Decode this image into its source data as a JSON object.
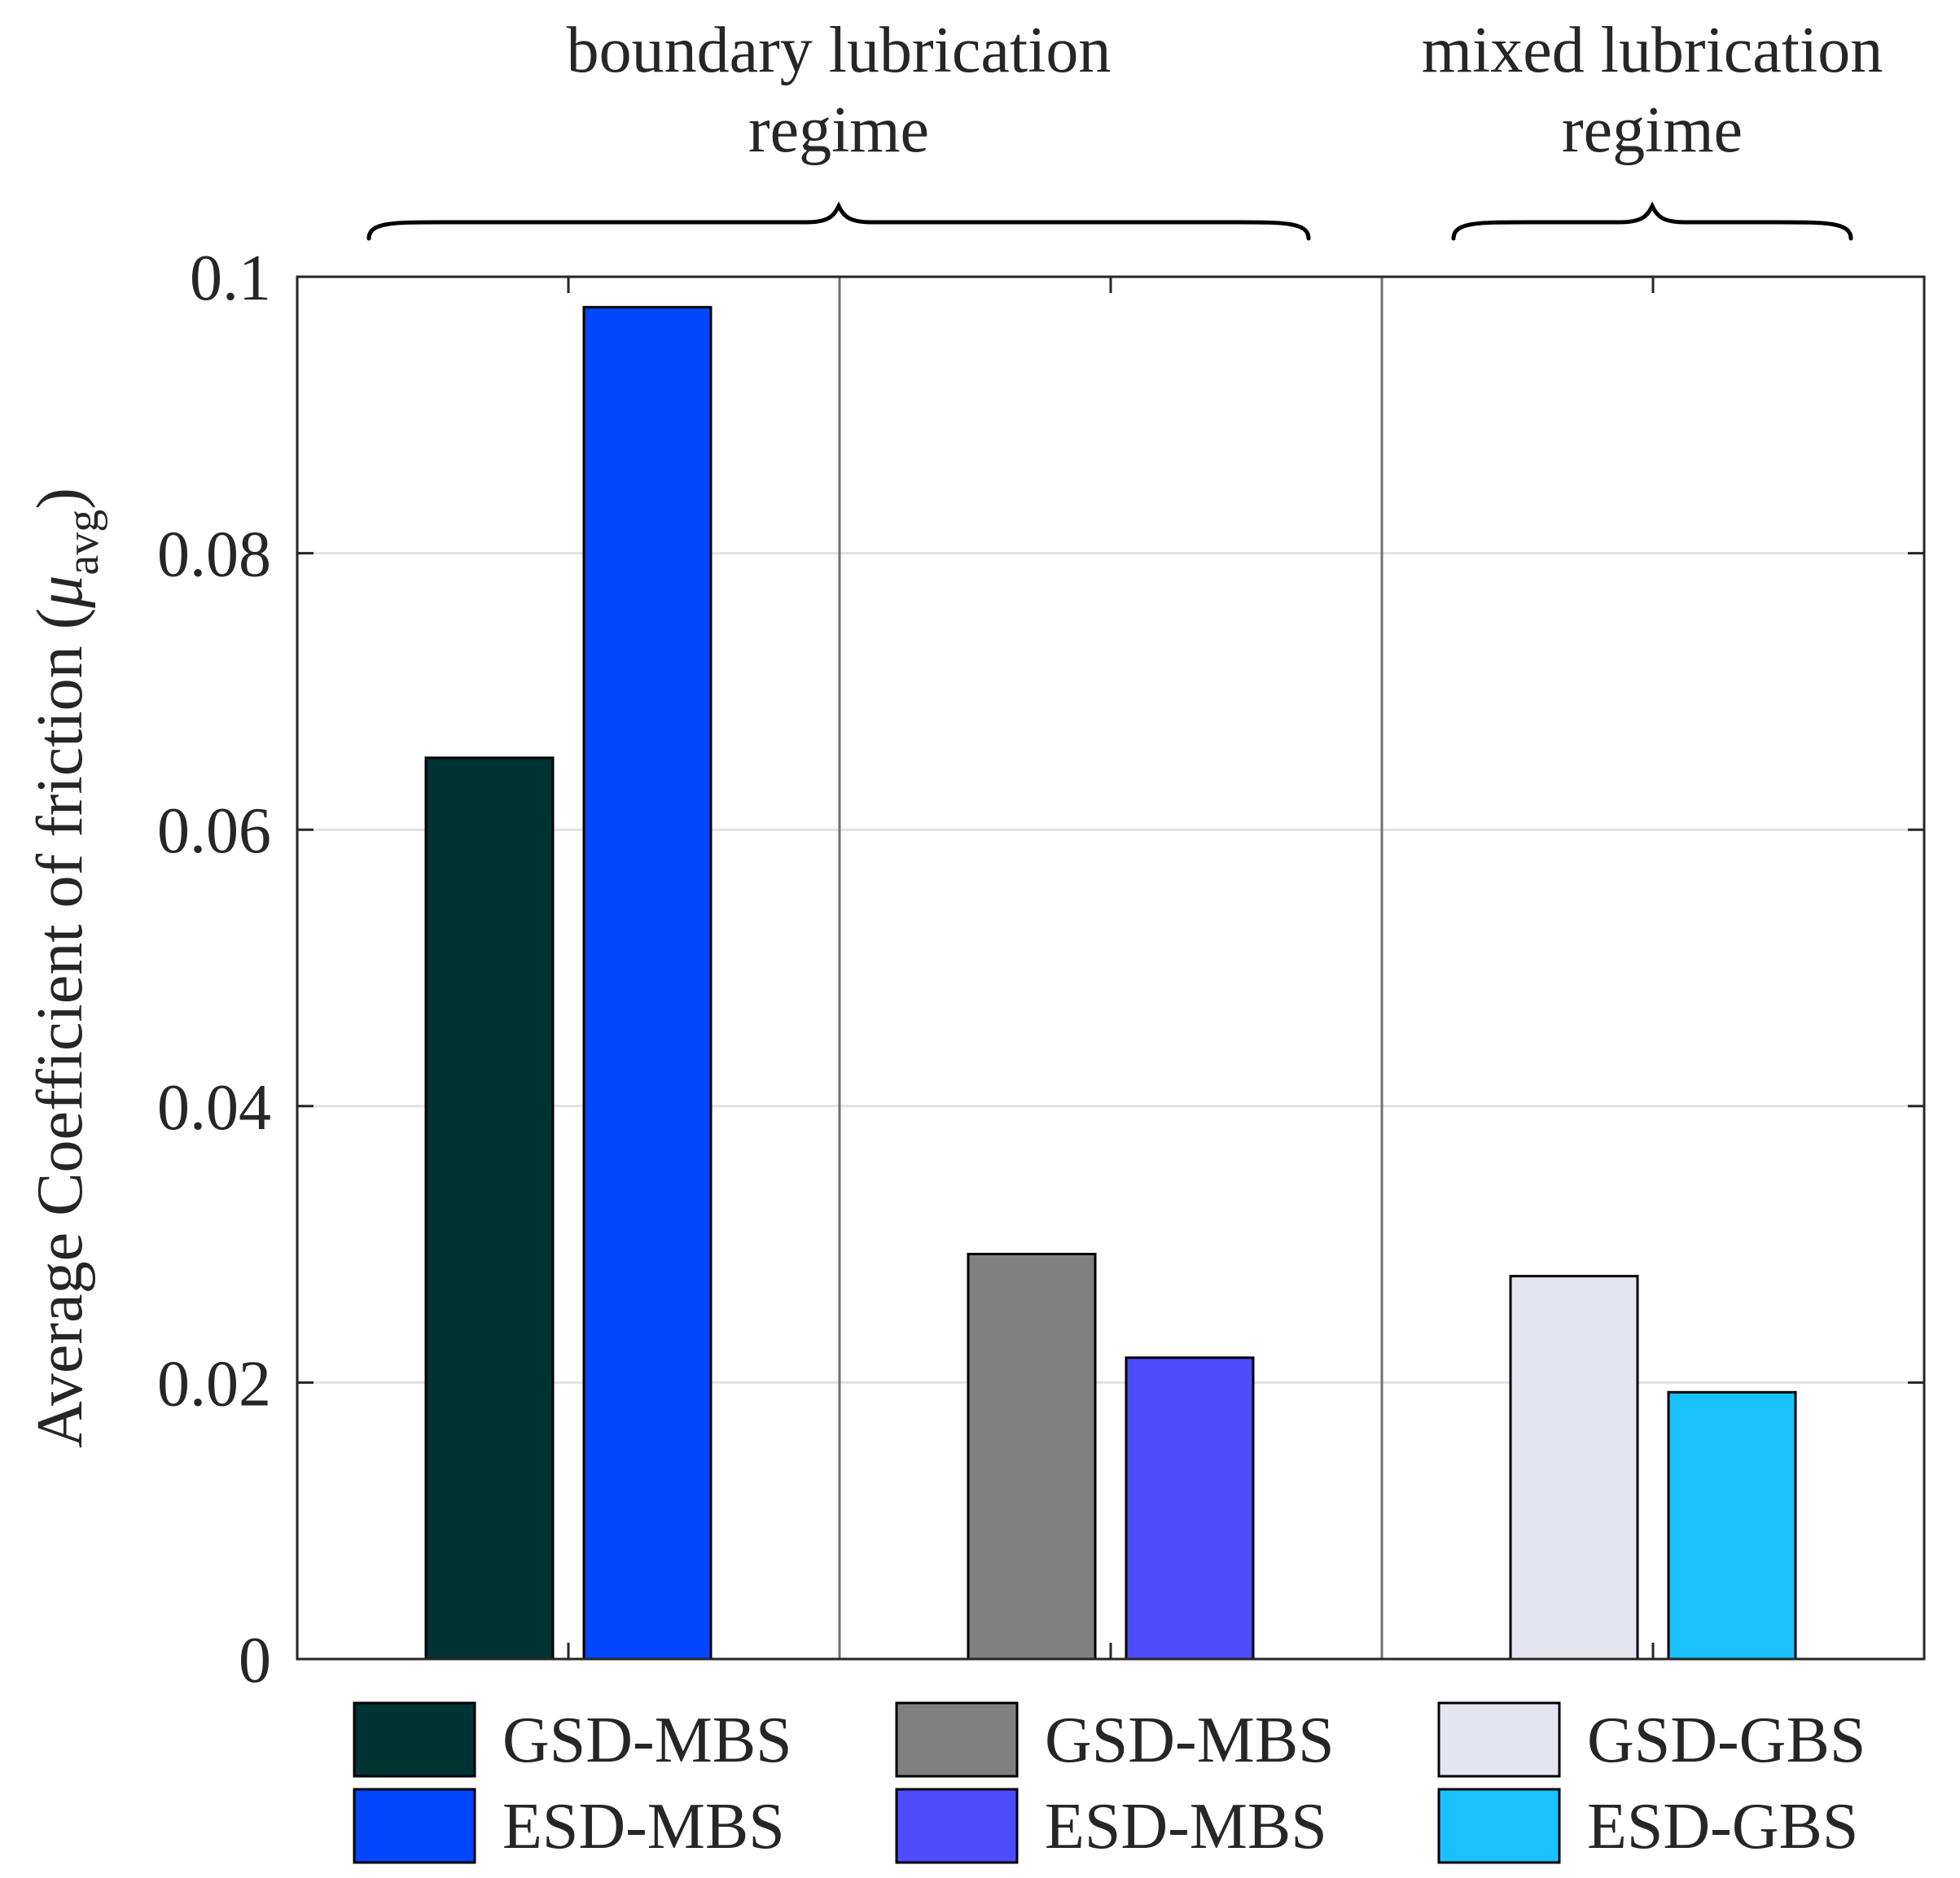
{
  "chart_data": {
    "type": "bar",
    "ylabel": "Average Coefficient of friction (",
    "ylabel_symbol": "μ",
    "ylabel_subscript": "avg",
    "ylabel_close": ")",
    "ylim": [
      0,
      0.1
    ],
    "yticks": [
      "0",
      "0.02",
      "0.04",
      "0.06",
      "0.08",
      "0.1"
    ],
    "ytick_values": [
      0,
      0.02,
      0.04,
      0.06,
      0.08,
      0.1
    ],
    "grid": true,
    "regimes": [
      {
        "line1": "boundary lubrication",
        "line2": "regime",
        "spans_groups": [
          0,
          1
        ]
      },
      {
        "line1": "mixed lubrication",
        "line2": "regime",
        "spans_groups": [
          2
        ]
      }
    ],
    "groups": [
      {
        "bars": [
          {
            "name": "GSD-MBS",
            "value": 0.0652,
            "color": "#003333"
          },
          {
            "name": "ESD-MBS",
            "value": 0.0978,
            "color": "#0047ff"
          }
        ]
      },
      {
        "bars": [
          {
            "name": "GSD-MBS",
            "value": 0.0293,
            "color": "#808080"
          },
          {
            "name": "ESD-MBS",
            "value": 0.0218,
            "color": "#4d4dff"
          }
        ]
      },
      {
        "bars": [
          {
            "name": "GSD-GBS",
            "value": 0.0277,
            "color": "#e5e5f2"
          },
          {
            "name": "ESD-GBS",
            "value": 0.0193,
            "color": "#1ac0ff"
          }
        ]
      }
    ]
  }
}
